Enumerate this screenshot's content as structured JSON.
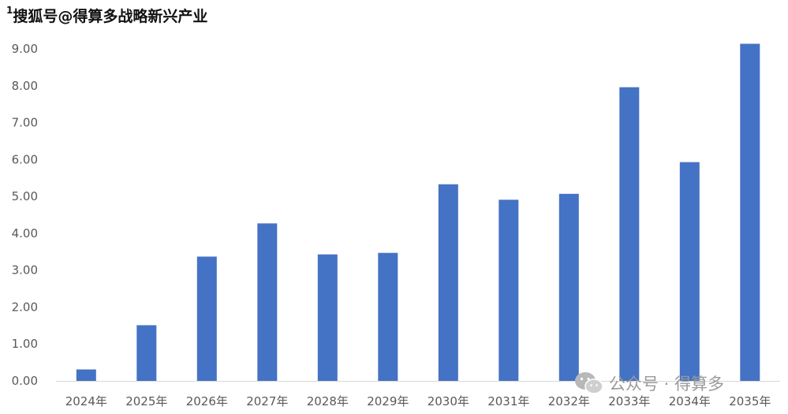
{
  "watermark": {
    "prefix": "1",
    "text": "搜狐号@得算多战略新兴产业",
    "wechat": "公众号 · 得算多",
    "wechat_icon": "wechat-icon"
  },
  "colors": {
    "bar": "#4472c4",
    "axis": "#d9d9d9",
    "text": "#595959"
  },
  "chart_data": {
    "type": "bar",
    "title": "",
    "xlabel": "",
    "ylabel": "",
    "categories": [
      "2024年",
      "2025年",
      "2026年",
      "2027年",
      "2028年",
      "2029年",
      "2030年",
      "2031年",
      "2032年",
      "2033年",
      "2034年",
      "2035年"
    ],
    "values": [
      0.31,
      1.51,
      3.37,
      4.27,
      3.43,
      3.47,
      5.33,
      4.91,
      5.07,
      7.96,
      5.93,
      9.14
    ],
    "ylim": [
      0,
      9
    ],
    "yticks": [
      "0.00",
      "1.00",
      "2.00",
      "3.00",
      "4.00",
      "5.00",
      "6.00",
      "7.00",
      "8.00",
      "9.00"
    ],
    "grid": false,
    "legend": "none"
  }
}
